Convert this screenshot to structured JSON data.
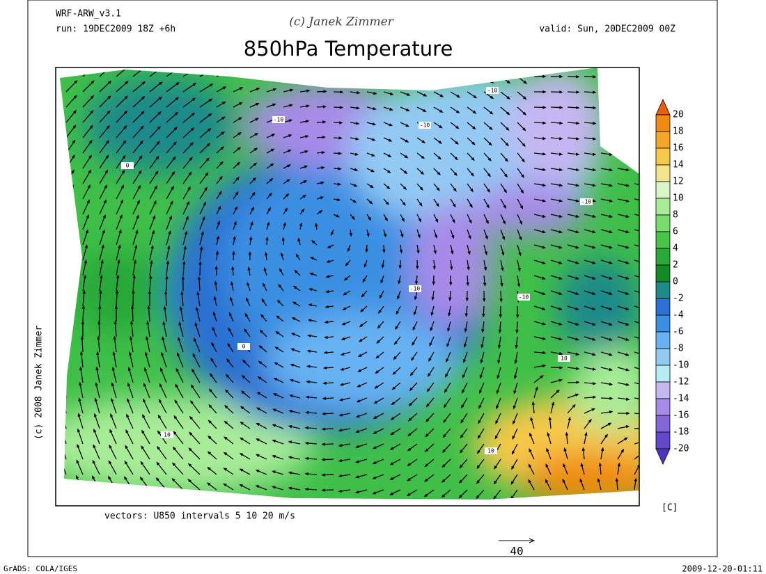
{
  "header": {
    "model": "WRF-ARW_v3.1",
    "run": "run: 19DEC2009 18Z +6h",
    "credit": "(c) Janek Zimmer",
    "valid": "valid: Sun, 20DEC2009 00Z",
    "title": "850hPa Temperature"
  },
  "side_credit": "(c) 2008 Janek Zimmer",
  "vectors_note": "vectors: U850 intervals 5 10 20 m/s",
  "reference_vector": 40,
  "contour_labels": [
    -10,
    -10,
    -10,
    -10,
    -10,
    -10,
    0,
    0,
    10,
    10,
    10
  ],
  "colorbar": {
    "labels": [
      20,
      18,
      16,
      14,
      12,
      10,
      8,
      6,
      4,
      2,
      0,
      -2,
      -4,
      -6,
      -8,
      -10,
      -12,
      -14,
      -16,
      -18,
      -20
    ],
    "unit": "[C]",
    "colors": [
      "#e8600f",
      "#f08a10",
      "#f5a628",
      "#f7c84a",
      "#f3e48c",
      "#d8f6c8",
      "#a8ec98",
      "#78dc6a",
      "#48c448",
      "#28a838",
      "#128c22",
      "#1f8a8a",
      "#2a6fd2",
      "#3a8fe2",
      "#66b2f2",
      "#92caf4",
      "#b6ecf4",
      "#c6b6f2",
      "#a88ae8",
      "#8466da",
      "#6448cc",
      "#5034c0"
    ]
  },
  "footer": {
    "left": "GrADS: COLA/IGES",
    "right": "2009-12-20-01:11"
  }
}
